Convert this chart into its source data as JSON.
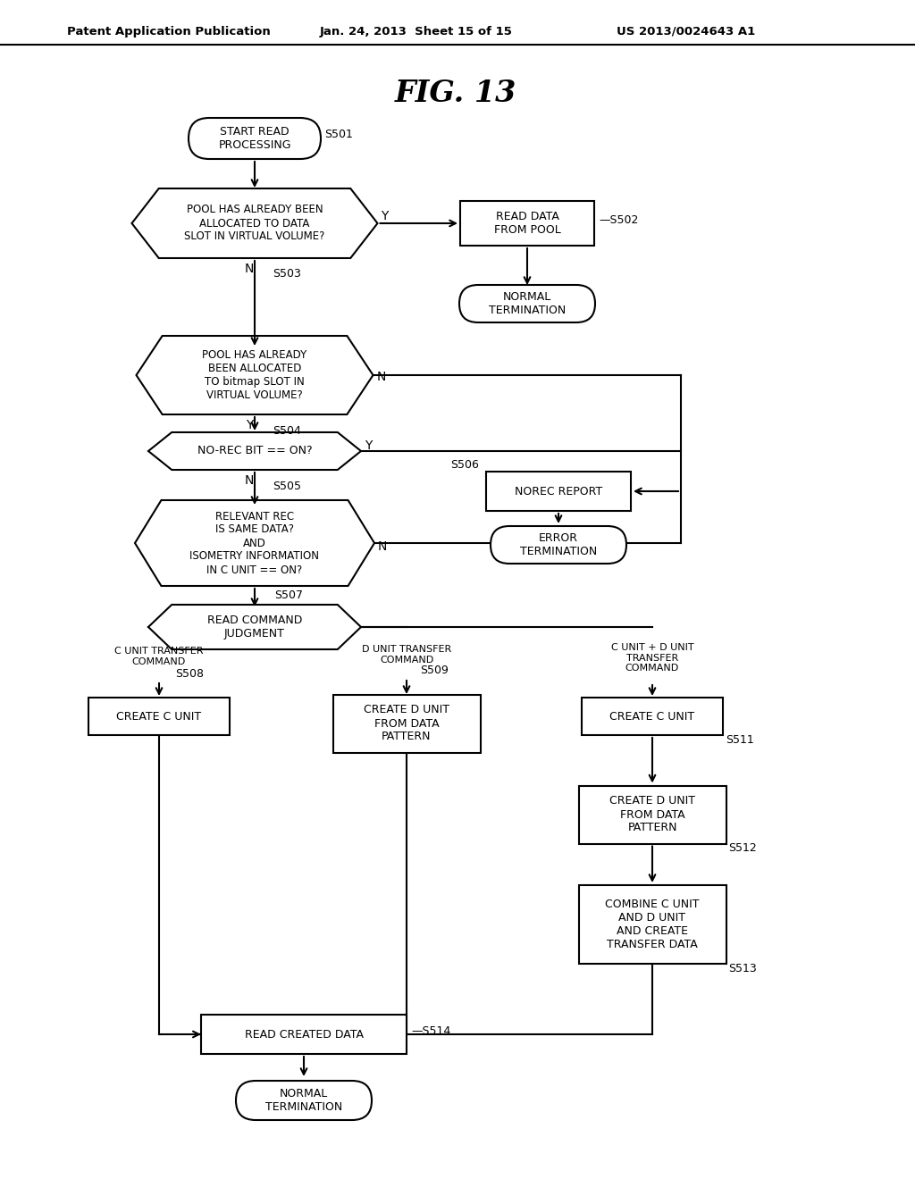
{
  "bg_color": "#ffffff",
  "header_left": "Patent Application Publication",
  "header_mid": "Jan. 24, 2013  Sheet 15 of 15",
  "header_right": "US 2013/0024643 A1",
  "fig_title": "FIG. 13",
  "line_color": "#000000"
}
